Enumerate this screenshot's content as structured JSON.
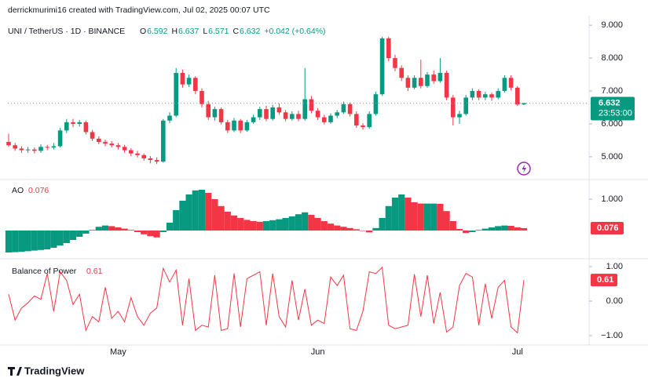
{
  "header": {
    "credit": "derrickmurimi16 created with TradingView.com, Jul 02, 2025 00:07 UTC",
    "symbol": "UNI / TetherUS · 1D · BINANCE",
    "legend_keys": [
      "O",
      "H",
      "L",
      "C"
    ],
    "change": "+0.042 (+0.64%)",
    "countdown": "23:53:00"
  },
  "footer": {
    "brand": "TradingView"
  },
  "chart_data": [
    {
      "type": "candlestick",
      "up_color": "#089981",
      "down_color": "#f23645",
      "categories": [
        null,
        null,
        null,
        null,
        null,
        null,
        null,
        null,
        null,
        null,
        null,
        null,
        null,
        null,
        null,
        null,
        null,
        "May",
        null,
        null,
        null,
        null,
        null,
        null,
        null,
        null,
        null,
        null,
        null,
        null,
        null,
        null,
        null,
        null,
        null,
        null,
        null,
        null,
        null,
        null,
        null,
        null,
        null,
        null,
        null,
        null,
        null,
        null,
        "Jun",
        null,
        null,
        null,
        null,
        null,
        null,
        null,
        null,
        null,
        null,
        null,
        null,
        null,
        null,
        null,
        null,
        null,
        null,
        null,
        null,
        null,
        null,
        null,
        null,
        null,
        null,
        null,
        null,
        null,
        null,
        "Jul",
        null
      ],
      "open": [
        5.45,
        5.35,
        5.25,
        5.2,
        5.22,
        5.18,
        5.3,
        5.28,
        5.32,
        5.8,
        6.05,
        6.0,
        6.05,
        5.75,
        5.55,
        5.45,
        5.4,
        5.35,
        5.3,
        5.2,
        5.1,
        5.05,
        4.95,
        4.9,
        4.85,
        6.1,
        6.25,
        7.55,
        7.2,
        7.4,
        7.0,
        6.6,
        6.2,
        6.45,
        6.05,
        5.8,
        6.1,
        5.8,
        6.05,
        6.2,
        6.45,
        6.15,
        6.5,
        6.35,
        6.15,
        6.3,
        6.15,
        6.75,
        6.4,
        6.2,
        6.05,
        6.25,
        6.35,
        6.6,
        6.3,
        5.95,
        5.9,
        6.3,
        6.9,
        8.6,
        8.0,
        7.7,
        7.4,
        7.1,
        7.4,
        7.15,
        7.5,
        7.3,
        7.55,
        6.8,
        6.2,
        6.3,
        6.8,
        7.0,
        6.8,
        6.9,
        6.8,
        7.0,
        7.4,
        7.1,
        6.592
      ],
      "high": [
        5.7,
        5.42,
        5.32,
        5.3,
        5.28,
        5.38,
        5.36,
        5.42,
        5.88,
        6.15,
        6.15,
        6.12,
        6.1,
        5.82,
        5.62,
        5.52,
        5.48,
        5.42,
        5.36,
        5.26,
        5.18,
        5.1,
        5.02,
        4.98,
        6.15,
        6.35,
        7.7,
        7.65,
        7.5,
        7.45,
        7.08,
        6.7,
        6.52,
        6.5,
        6.12,
        6.18,
        6.15,
        6.12,
        6.28,
        6.52,
        6.55,
        6.58,
        6.62,
        6.42,
        6.38,
        6.4,
        7.7,
        6.85,
        6.48,
        6.28,
        6.32,
        6.42,
        6.68,
        6.65,
        6.38,
        6.02,
        6.38,
        6.98,
        8.65,
        8.65,
        8.1,
        7.78,
        7.48,
        7.48,
        7.95,
        7.58,
        7.62,
        8.0,
        7.62,
        6.88,
        6.4,
        6.88,
        7.08,
        7.05,
        6.98,
        6.95,
        7.08,
        7.48,
        7.48,
        7.15,
        6.637
      ],
      "low": [
        5.3,
        5.18,
        5.12,
        5.12,
        5.1,
        5.12,
        5.2,
        5.22,
        5.28,
        5.72,
        5.9,
        5.92,
        5.68,
        5.48,
        5.38,
        5.32,
        5.28,
        5.22,
        5.12,
        5.02,
        4.98,
        4.88,
        4.8,
        4.78,
        4.82,
        6.02,
        6.2,
        7.1,
        7.12,
        6.9,
        6.5,
        6.12,
        6.1,
        5.98,
        5.72,
        5.75,
        5.72,
        5.76,
        6.0,
        6.12,
        6.08,
        6.1,
        6.28,
        6.08,
        6.1,
        6.08,
        6.1,
        6.32,
        6.12,
        5.98,
        6.0,
        6.18,
        6.3,
        6.22,
        5.88,
        5.82,
        5.85,
        6.25,
        6.85,
        7.9,
        7.6,
        7.3,
        7.0,
        7.05,
        7.08,
        7.1,
        7.22,
        7.25,
        6.72,
        5.95,
        6.0,
        6.25,
        6.72,
        6.72,
        6.72,
        6.7,
        6.75,
        6.95,
        7.02,
        6.55,
        6.571
      ],
      "close": [
        5.35,
        5.25,
        5.2,
        5.22,
        5.18,
        5.3,
        5.28,
        5.32,
        5.8,
        6.05,
        6.0,
        6.05,
        5.75,
        5.55,
        5.45,
        5.4,
        5.35,
        5.3,
        5.2,
        5.1,
        5.05,
        4.95,
        4.9,
        4.85,
        6.1,
        6.25,
        7.55,
        7.2,
        7.4,
        7.0,
        6.6,
        6.2,
        6.45,
        6.05,
        5.8,
        6.1,
        5.8,
        6.05,
        6.2,
        6.45,
        6.15,
        6.5,
        6.35,
        6.15,
        6.3,
        6.15,
        6.75,
        6.4,
        6.2,
        6.05,
        6.25,
        6.35,
        6.6,
        6.3,
        5.95,
        5.9,
        6.3,
        6.9,
        8.6,
        8.0,
        7.7,
        7.4,
        7.1,
        7.4,
        7.15,
        7.5,
        7.3,
        7.55,
        6.8,
        6.2,
        6.3,
        6.8,
        7.0,
        6.8,
        6.9,
        6.8,
        7.0,
        7.4,
        7.1,
        6.59,
        6.632
      ],
      "ylim": [
        4.33,
        9.29
      ],
      "yticks": [
        {
          "value": 5,
          "label": "5.000"
        },
        {
          "value": 6,
          "label": "6.000"
        },
        {
          "value": 7,
          "label": "7.000"
        },
        {
          "value": 8,
          "label": "8.000"
        },
        {
          "value": 9,
          "label": "9.000"
        }
      ]
    },
    {
      "type": "histogram",
      "title": "AO",
      "up_color": "#089981",
      "down_color": "#f23645",
      "values": [
        -0.7,
        -0.69,
        -0.68,
        -0.66,
        -0.64,
        -0.62,
        -0.6,
        -0.55,
        -0.48,
        -0.4,
        -0.3,
        -0.2,
        -0.1,
        0.02,
        0.12,
        0.16,
        0.14,
        0.1,
        0.06,
        0.02,
        -0.05,
        -0.12,
        -0.18,
        -0.22,
        -0.05,
        0.25,
        0.65,
        0.95,
        1.15,
        1.28,
        1.3,
        1.2,
        1.0,
        0.78,
        0.6,
        0.48,
        0.4,
        0.34,
        0.3,
        0.28,
        0.3,
        0.33,
        0.36,
        0.4,
        0.45,
        0.52,
        0.58,
        0.5,
        0.4,
        0.3,
        0.22,
        0.16,
        0.12,
        0.08,
        0.04,
        0,
        -0.06,
        0.08,
        0.4,
        0.78,
        1.05,
        1.15,
        1.05,
        0.9,
        0.86,
        0.86,
        0.86,
        0.85,
        0.62,
        0.3,
        0.05,
        -0.08,
        -0.05,
        0.02,
        0.06,
        0.1,
        0.14,
        0.16,
        0.15,
        0.1,
        0.076
      ],
      "ylim": [
        -0.85,
        1.55
      ],
      "yticks": [
        {
          "value": 1,
          "label": "1.000"
        }
      ]
    },
    {
      "type": "line",
      "title": "Balance of Power",
      "color": "#f23645",
      "values": [
        0.2,
        -0.55,
        -0.2,
        -0.05,
        0.15,
        0.05,
        0.8,
        -0.3,
        0.85,
        0.6,
        -0.1,
        0.2,
        -0.85,
        -0.45,
        -0.6,
        0.4,
        -0.5,
        -0.3,
        -0.6,
        0.1,
        -0.45,
        -0.7,
        -0.35,
        -0.2,
        0.95,
        0.55,
        0.9,
        -0.7,
        0.65,
        -0.85,
        -0.7,
        -0.75,
        0.75,
        -0.85,
        -0.8,
        0.8,
        -0.75,
        0.65,
        0.75,
        0.85,
        -0.7,
        0.8,
        -0.45,
        -0.75,
        0.6,
        -0.55,
        0.35,
        -0.7,
        -0.55,
        -0.65,
        0.7,
        0.45,
        0.75,
        -0.8,
        -0.85,
        -0.3,
        0.85,
        0.8,
        0.98,
        -0.7,
        -0.8,
        -0.75,
        -0.7,
        0.78,
        -0.45,
        0.75,
        -0.65,
        0.25,
        -0.9,
        -0.75,
        0.45,
        0.8,
        0.7,
        -0.7,
        0.5,
        -0.5,
        0.4,
        0.6,
        -0.75,
        -0.92,
        0.61
      ],
      "ylim": [
        -1.227,
        1.136
      ],
      "yticks": [
        {
          "value": 1,
          "label": "1.00"
        },
        {
          "value": 0,
          "label": "0.00"
        },
        {
          "value": -1,
          "label": "−1.00"
        }
      ]
    }
  ]
}
